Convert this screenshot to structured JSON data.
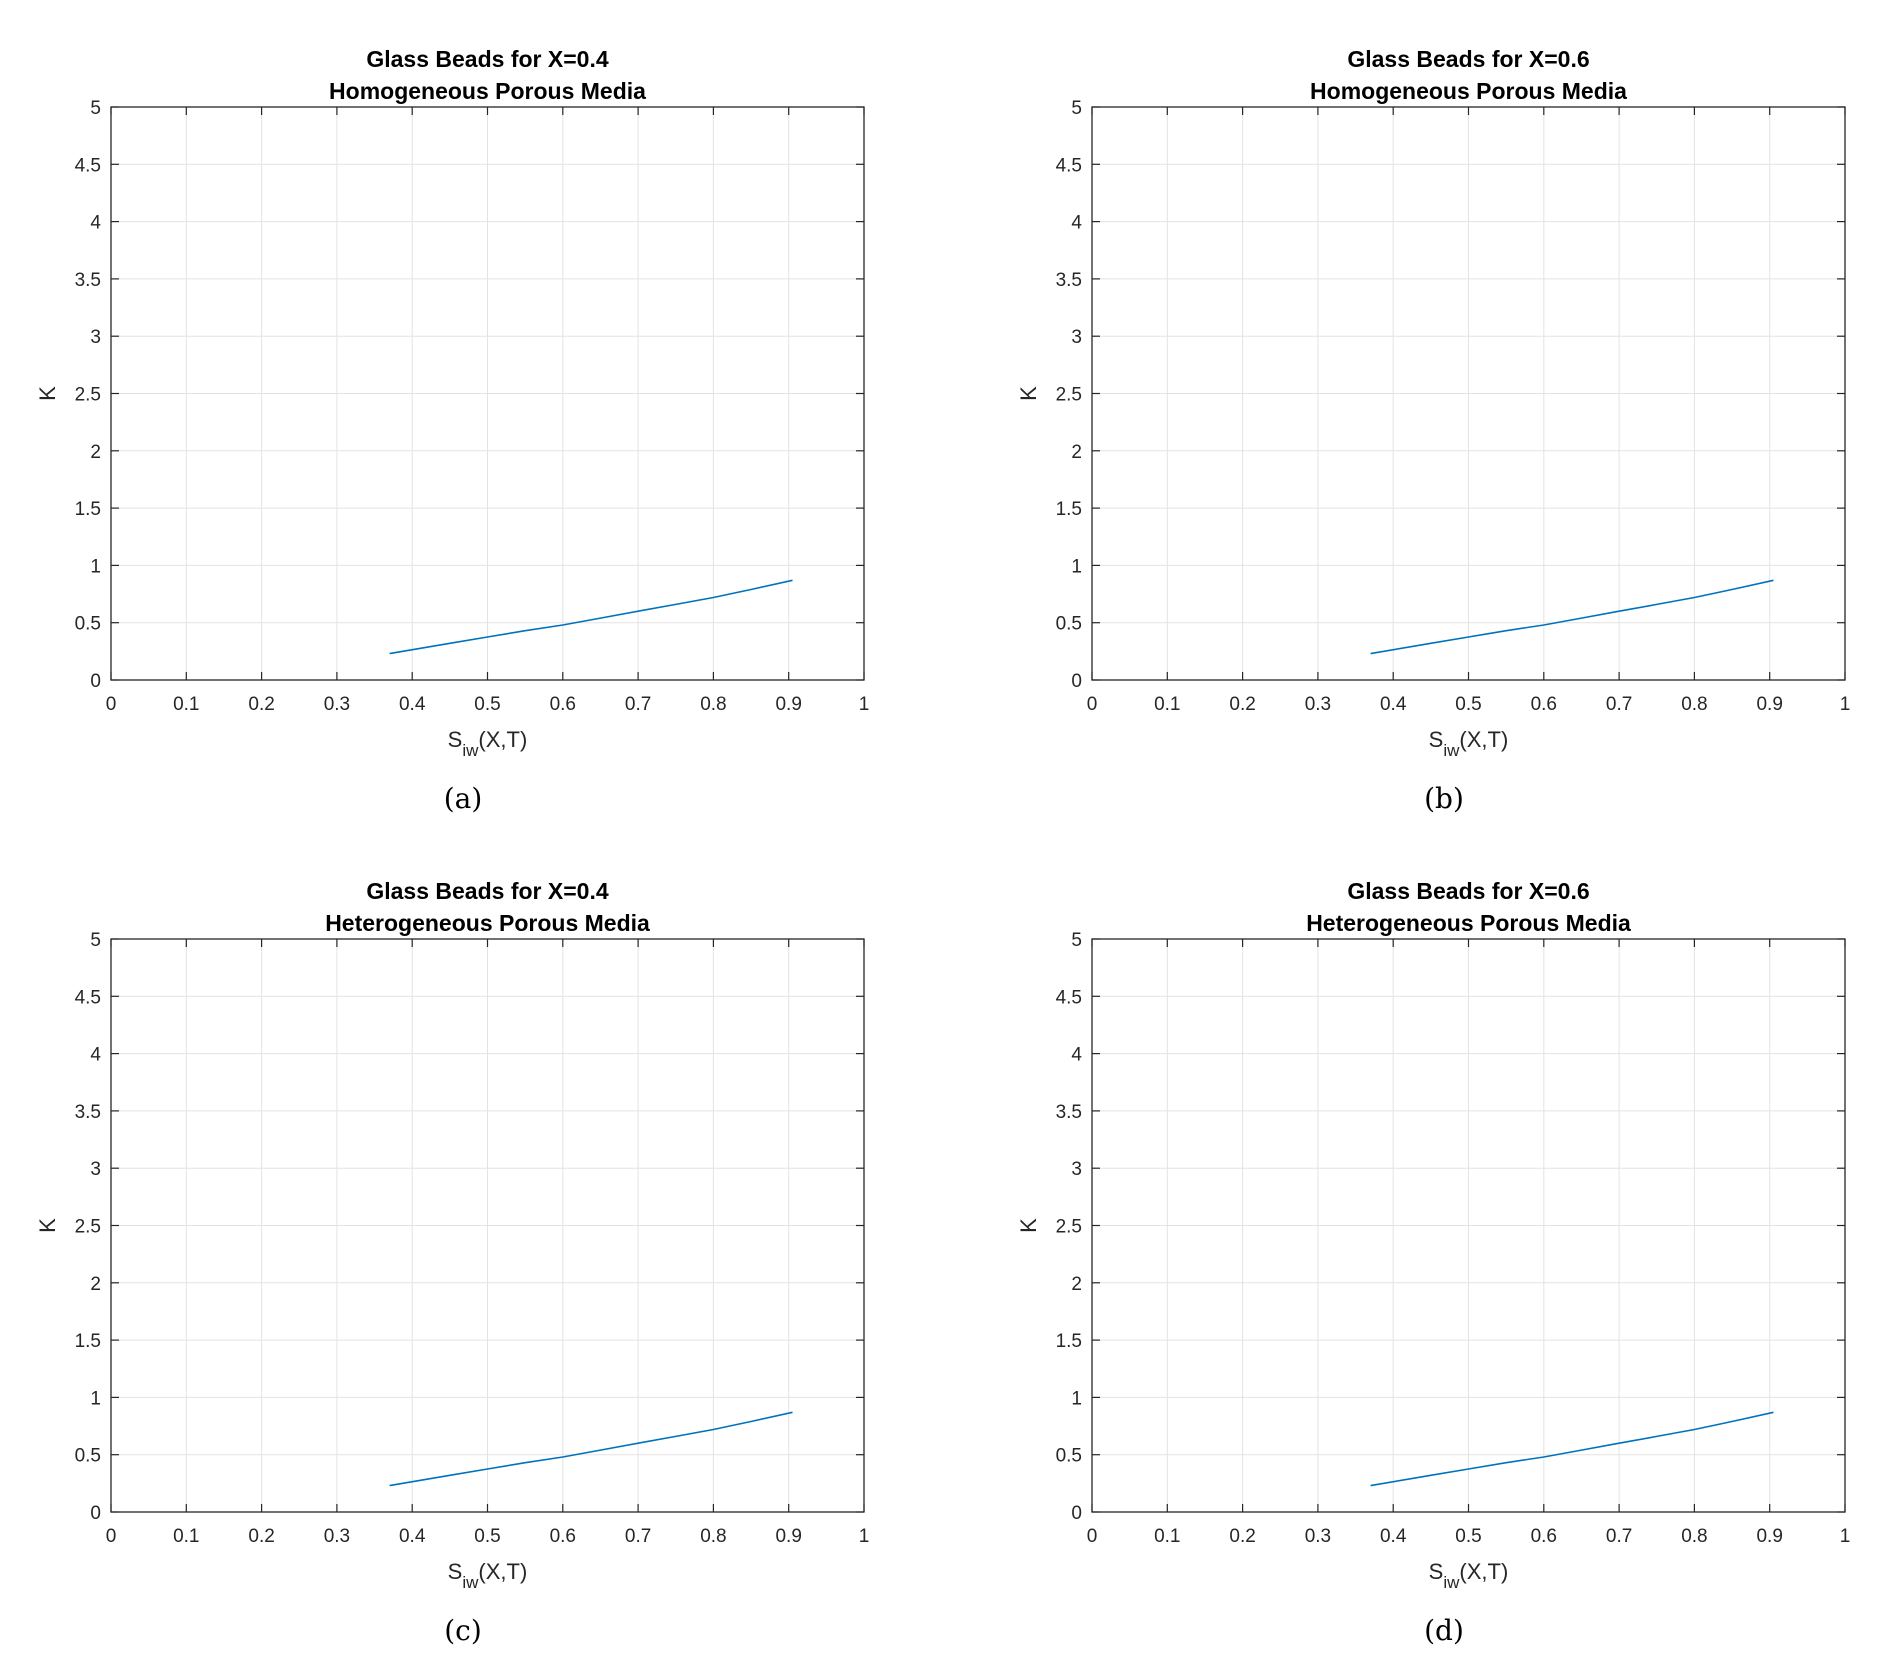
{
  "chart_data": [
    {
      "type": "line",
      "caption": "(a)",
      "title": [
        "Glass Beads for X=0.4",
        "Homogeneous Porous Media"
      ],
      "xlabel": {
        "main": "S",
        "sub": "iw",
        "tail": "(X,T)"
      },
      "ylabel": "K",
      "xlim": [
        0,
        1
      ],
      "ylim": [
        0,
        5
      ],
      "xticks": [
        "0",
        "0.1",
        "0.2",
        "0.3",
        "0.4",
        "0.5",
        "0.6",
        "0.7",
        "0.8",
        "0.9",
        "1"
      ],
      "yticks": [
        "0",
        "0.5",
        "1",
        "1.5",
        "2",
        "2.5",
        "3",
        "3.5",
        "4",
        "4.5",
        "5"
      ],
      "grid": true,
      "series": [
        {
          "color": "#0072BD",
          "x": [
            0.37,
            0.45,
            0.5,
            0.55,
            0.6,
            0.65,
            0.7,
            0.75,
            0.8,
            0.85,
            0.905
          ],
          "y": [
            0.23,
            0.32,
            0.375,
            0.43,
            0.48,
            0.54,
            0.6,
            0.66,
            0.72,
            0.79,
            0.87
          ]
        }
      ]
    },
    {
      "type": "line",
      "caption": "(b)",
      "title": [
        "Glass Beads for X=0.6",
        "Homogeneous Porous Media"
      ],
      "xlabel": {
        "main": "S",
        "sub": "iw",
        "tail": "(X,T)"
      },
      "ylabel": "K",
      "xlim": [
        0,
        1
      ],
      "ylim": [
        0,
        5
      ],
      "xticks": [
        "0",
        "0.1",
        "0.2",
        "0.3",
        "0.4",
        "0.5",
        "0.6",
        "0.7",
        "0.8",
        "0.9",
        "1"
      ],
      "yticks": [
        "0",
        "0.5",
        "1",
        "1.5",
        "2",
        "2.5",
        "3",
        "3.5",
        "4",
        "4.5",
        "5"
      ],
      "grid": true,
      "series": [
        {
          "color": "#0072BD",
          "x": [
            0.37,
            0.45,
            0.5,
            0.55,
            0.6,
            0.65,
            0.7,
            0.75,
            0.8,
            0.85,
            0.905
          ],
          "y": [
            0.23,
            0.32,
            0.375,
            0.43,
            0.48,
            0.54,
            0.6,
            0.66,
            0.72,
            0.79,
            0.87
          ]
        }
      ]
    },
    {
      "type": "line",
      "caption": "(c)",
      "title": [
        "Glass Beads for X=0.4",
        "Heterogeneous Porous Media"
      ],
      "xlabel": {
        "main": "S",
        "sub": "iw",
        "tail": "(X,T)"
      },
      "ylabel": "K",
      "xlim": [
        0,
        1
      ],
      "ylim": [
        0,
        5
      ],
      "xticks": [
        "0",
        "0.1",
        "0.2",
        "0.3",
        "0.4",
        "0.5",
        "0.6",
        "0.7",
        "0.8",
        "0.9",
        "1"
      ],
      "yticks": [
        "0",
        "0.5",
        "1",
        "1.5",
        "2",
        "2.5",
        "3",
        "3.5",
        "4",
        "4.5",
        "5"
      ],
      "grid": true,
      "series": [
        {
          "color": "#0072BD",
          "x": [
            0.37,
            0.45,
            0.5,
            0.55,
            0.6,
            0.65,
            0.7,
            0.75,
            0.8,
            0.85,
            0.905
          ],
          "y": [
            0.23,
            0.32,
            0.375,
            0.43,
            0.48,
            0.54,
            0.6,
            0.66,
            0.72,
            0.79,
            0.87
          ]
        }
      ]
    },
    {
      "type": "line",
      "caption": "(d)",
      "title": [
        "Glass Beads for X=0.6",
        "Heterogeneous Porous Media"
      ],
      "xlabel": {
        "main": "S",
        "sub": "iw",
        "tail": "(X,T)"
      },
      "ylabel": "K",
      "xlim": [
        0,
        1
      ],
      "ylim": [
        0,
        5
      ],
      "xticks": [
        "0",
        "0.1",
        "0.2",
        "0.3",
        "0.4",
        "0.5",
        "0.6",
        "0.7",
        "0.8",
        "0.9",
        "1"
      ],
      "yticks": [
        "0",
        "0.5",
        "1",
        "1.5",
        "2",
        "2.5",
        "3",
        "3.5",
        "4",
        "4.5",
        "5"
      ],
      "grid": true,
      "series": [
        {
          "color": "#0072BD",
          "x": [
            0.37,
            0.45,
            0.5,
            0.55,
            0.6,
            0.65,
            0.7,
            0.75,
            0.8,
            0.85,
            0.905
          ],
          "y": [
            0.23,
            0.32,
            0.375,
            0.43,
            0.48,
            0.54,
            0.6,
            0.66,
            0.72,
            0.79,
            0.87
          ]
        }
      ]
    }
  ]
}
